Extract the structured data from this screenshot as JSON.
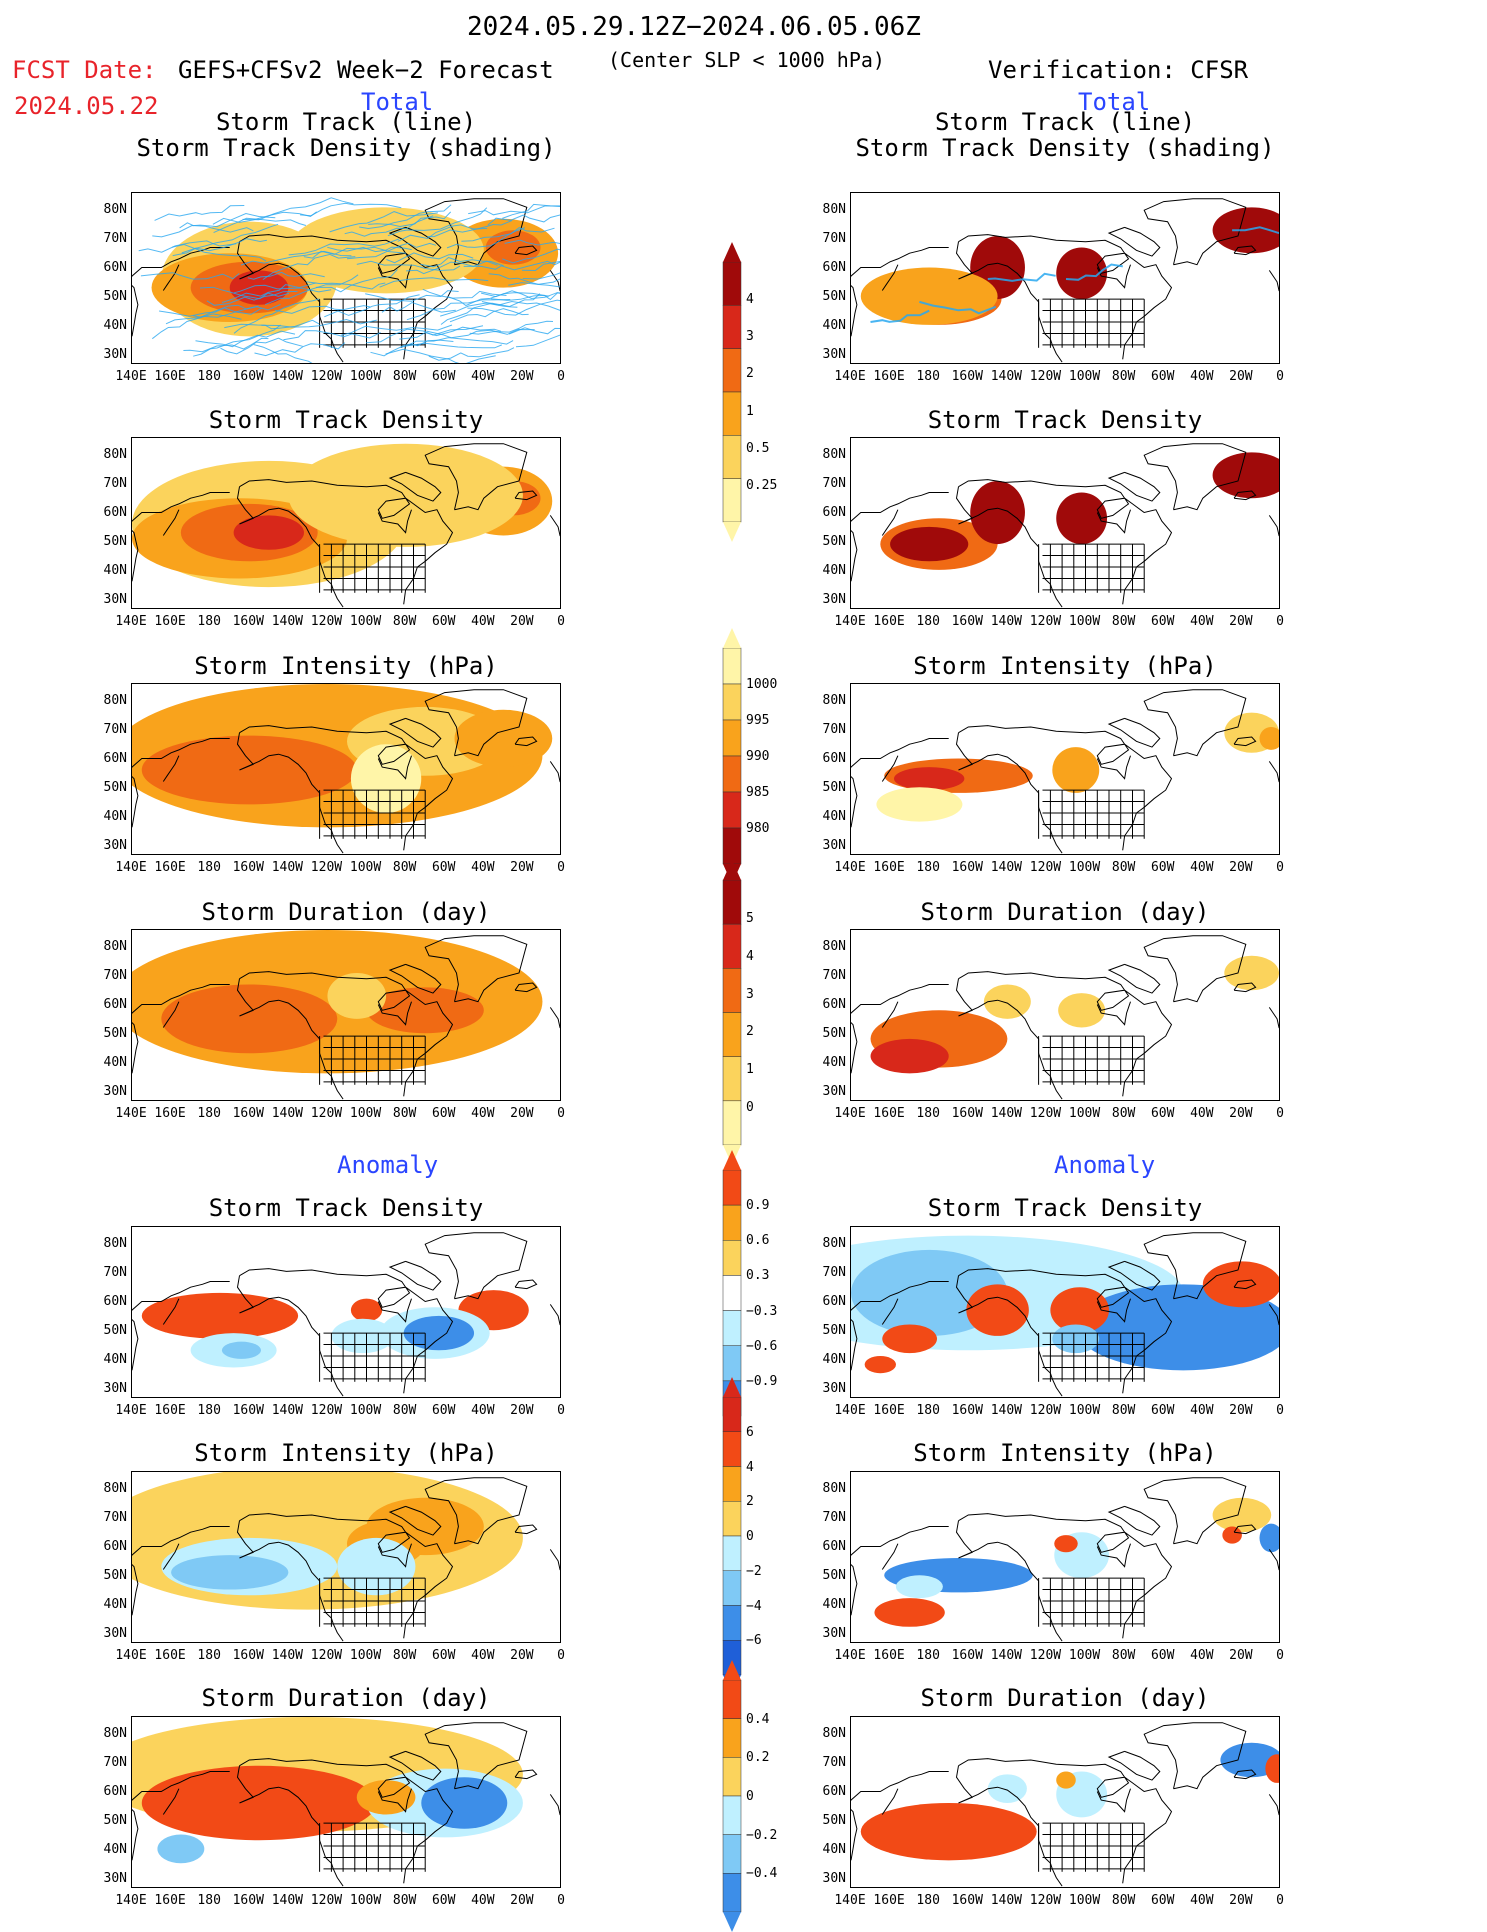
{
  "header": {
    "period": "2024.05.29.12Z−2024.06.05.06Z",
    "fcst_date_label": "FCST Date:",
    "fcst_date": "2024.05.22",
    "forecast_label": "GEFS+CFSv2 Week−2 Forecast",
    "center_slp": "(Center SLP < 1000 hPa)",
    "verification": "Verification: CFSR",
    "total_left": "Total",
    "total_right": "Total",
    "anomaly_left": "Anomaly",
    "anomaly_right": "Anomaly"
  },
  "panel_titles": {
    "track_line": "Storm Track (line)",
    "track_shading": "Storm Track Density (shading)",
    "density": "Storm Track Density",
    "intensity": "Storm Intensity (hPa)",
    "duration": "Storm Duration (day)"
  },
  "axes": {
    "lat_labels": [
      "80N",
      "70N",
      "60N",
      "50N",
      "40N",
      "30N"
    ],
    "lon_labels": [
      "140E",
      "160E",
      "180",
      "160W",
      "140W",
      "120W",
      "100W",
      "80W",
      "60W",
      "40W",
      "20W",
      "0"
    ]
  },
  "colorbars": {
    "density_total": [
      "4",
      "3",
      "2",
      "1",
      "0.5",
      "0.25"
    ],
    "intensity_total": [
      "1000",
      "995",
      "990",
      "985",
      "980"
    ],
    "duration_total": [
      "5",
      "4",
      "3",
      "2",
      "1",
      "0"
    ],
    "density_anom": [
      "0.9",
      "0.6",
      "0.3",
      "−0.3",
      "−0.6",
      "−0.9"
    ],
    "intensity_anom": [
      "6",
      "4",
      "2",
      "0",
      "−2",
      "−4",
      "−6"
    ],
    "duration_anom": [
      "0.4",
      "0.2",
      "0",
      "−0.2",
      "−0.4"
    ]
  },
  "colors": {
    "warm": [
      "#fff5a8",
      "#fbd35c",
      "#f9a31c",
      "#f06a14",
      "#d8281a",
      "#a00a0a"
    ],
    "cool": [
      "#bff0ff",
      "#7fc9f5",
      "#3d8ee8",
      "#1f5fd8"
    ],
    "track_line": "#29a8f0"
  }
}
